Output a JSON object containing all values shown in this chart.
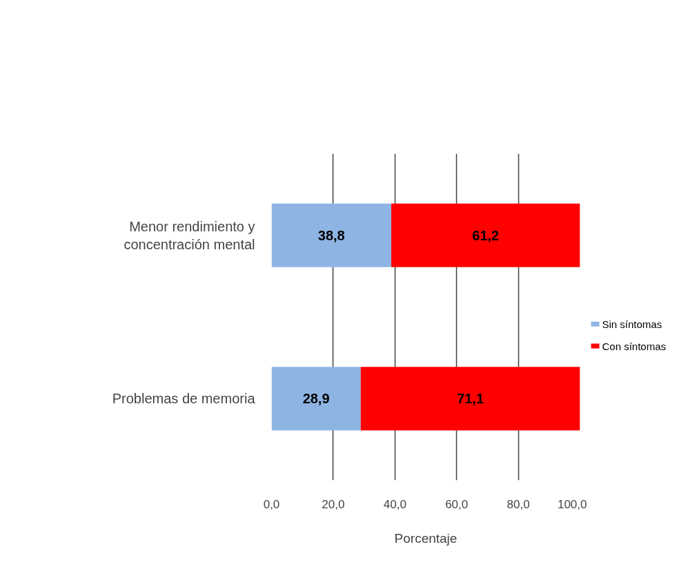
{
  "chart_data": {
    "type": "bar",
    "orientation": "horizontal",
    "stacked": true,
    "categories": [
      "Menor rendimiento y concentración mental",
      "Problemas de memoria"
    ],
    "series": [
      {
        "name": "Sin síntomas",
        "color": "#8eb4e3",
        "values": [
          38.8,
          28.9
        ],
        "value_labels": [
          "38,8",
          "28,9"
        ]
      },
      {
        "name": "Con síntomas",
        "color": "#ff0000",
        "values": [
          61.2,
          71.1
        ],
        "value_labels": [
          "61,2",
          "71,1"
        ]
      }
    ],
    "xlim": [
      0,
      100
    ],
    "xticks": [
      {
        "value": 0,
        "label": "0,0"
      },
      {
        "value": 20,
        "label": "20,0"
      },
      {
        "value": 40,
        "label": "40,0"
      },
      {
        "value": 60,
        "label": "60,0"
      },
      {
        "value": 80,
        "label": "80,0"
      },
      {
        "value": 100,
        "label": "100,0"
      }
    ],
    "xlabel": "Porcentaje",
    "grid": "x",
    "legend": "right"
  }
}
